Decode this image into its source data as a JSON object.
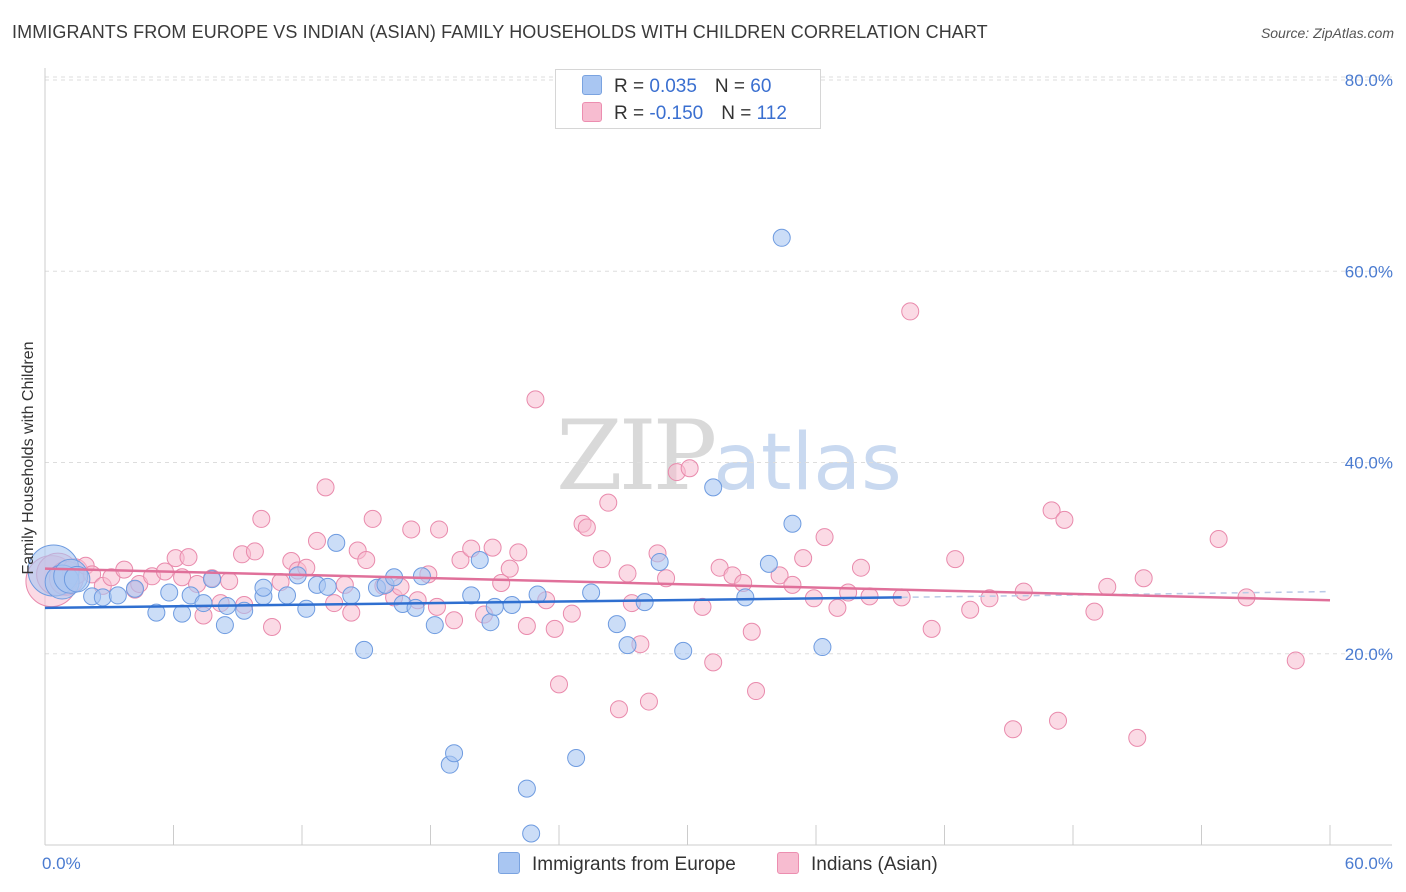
{
  "title": "IMMIGRANTS FROM EUROPE VS INDIAN (ASIAN) FAMILY HOUSEHOLDS WITH CHILDREN CORRELATION CHART",
  "source": "Source: ZipAtlas.com",
  "watermark": {
    "zip": "ZIP",
    "atlas": "atlas"
  },
  "legend": {
    "rows": [
      {
        "r_label": "R = ",
        "r_value": "0.035",
        "n_label": "N = ",
        "n_value": "60",
        "color": "#a9c6f2",
        "border": "#7aa3e0"
      },
      {
        "r_label": "R = ",
        "r_value": "-0.150",
        "n_label": "N = ",
        "n_value": "112",
        "color": "#f7bcd0",
        "border": "#ec8eb0"
      }
    ]
  },
  "colors": {
    "blue_fill": "#a9c6f2",
    "blue_stroke": "#6e9be0",
    "blue_line": "#2f6fd0",
    "pink_fill": "#f7bcd0",
    "pink_stroke": "#e98aac",
    "pink_line": "#e0709a",
    "grid": "#dddddd",
    "axis_text": "#4a7bd0"
  },
  "chart_data": {
    "type": "scatter",
    "title": "IMMIGRANTS FROM EUROPE VS INDIAN (ASIAN) FAMILY HOUSEHOLDS WITH CHILDREN CORRELATION CHART",
    "xlabel": "",
    "ylabel": "Family Households with Children",
    "xlim": [
      0,
      60
    ],
    "ylim": [
      0,
      80
    ],
    "x_tick_labels": [
      "0.0%",
      "60.0%"
    ],
    "y_ticks": [
      20,
      40,
      60,
      80
    ],
    "y_tick_labels": [
      "20.0%",
      "40.0%",
      "60.0%",
      "80.0%"
    ],
    "grid": true,
    "legend_location": "bottom",
    "series": [
      {
        "name": "Immigrants from Europe",
        "R": 0.035,
        "N": 60,
        "trend": {
          "x": [
            0,
            40
          ],
          "y": [
            24.8,
            25.9
          ],
          "extended_to": 60,
          "extended_y": 26.5
        },
        "points": [
          [
            0.4,
            28.7,
            3
          ],
          [
            0.8,
            27.5,
            2
          ],
          [
            1.2,
            28.1,
            2
          ],
          [
            1.5,
            27.8,
            1.5
          ],
          [
            2.2,
            26.0,
            1
          ],
          [
            2.7,
            25.9,
            1
          ],
          [
            3.4,
            26.1,
            1
          ],
          [
            4.2,
            26.8,
            1
          ],
          [
            5.2,
            24.3,
            1
          ],
          [
            5.8,
            26.4,
            1
          ],
          [
            6.4,
            24.2,
            1
          ],
          [
            6.8,
            26.1,
            1
          ],
          [
            7.4,
            25.3,
            1
          ],
          [
            7.8,
            27.8,
            1
          ],
          [
            8.4,
            23.0,
            1
          ],
          [
            8.5,
            25.0,
            1
          ],
          [
            9.3,
            24.5,
            1
          ],
          [
            10.2,
            26.0,
            1
          ],
          [
            10.2,
            26.9,
            1
          ],
          [
            11.3,
            26.1,
            1
          ],
          [
            11.8,
            28.2,
            1
          ],
          [
            12.2,
            24.7,
            1
          ],
          [
            12.7,
            27.2,
            1
          ],
          [
            13.2,
            27.0,
            1
          ],
          [
            13.6,
            31.6,
            1
          ],
          [
            14.3,
            26.1,
            1
          ],
          [
            14.9,
            20.4,
            1
          ],
          [
            15.5,
            26.9,
            1
          ],
          [
            15.9,
            27.2,
            1
          ],
          [
            16.3,
            28.0,
            1
          ],
          [
            16.7,
            25.2,
            1
          ],
          [
            17.3,
            24.8,
            1
          ],
          [
            17.6,
            28.1,
            1
          ],
          [
            18.2,
            23.0,
            1
          ],
          [
            18.9,
            8.4,
            1
          ],
          [
            19.1,
            9.6,
            1
          ],
          [
            19.9,
            26.1,
            1
          ],
          [
            20.3,
            29.8,
            1
          ],
          [
            20.8,
            23.3,
            1
          ],
          [
            21.0,
            24.9,
            1
          ],
          [
            21.8,
            25.1,
            1
          ],
          [
            22.5,
            5.9,
            1
          ],
          [
            22.7,
            1.2,
            1
          ],
          [
            23.0,
            26.2,
            1
          ],
          [
            24.8,
            9.1,
            1
          ],
          [
            25.5,
            26.4,
            1
          ],
          [
            26.7,
            23.1,
            1
          ],
          [
            27.2,
            20.9,
            1
          ],
          [
            28.0,
            25.4,
            1
          ],
          [
            28.7,
            29.6,
            1
          ],
          [
            29.8,
            20.3,
            1
          ],
          [
            31.2,
            37.4,
            1
          ],
          [
            32.7,
            25.9,
            1
          ],
          [
            33.8,
            29.4,
            1
          ],
          [
            34.4,
            63.5,
            1
          ],
          [
            34.9,
            33.6,
            1
          ],
          [
            36.3,
            20.7,
            1
          ]
        ]
      },
      {
        "name": "Indians (Asian)",
        "R": -0.15,
        "N": 112,
        "trend": {
          "x": [
            0,
            60
          ],
          "y": [
            28.9,
            25.6
          ]
        },
        "points": [
          [
            0.3,
            27.6,
            3
          ],
          [
            0.6,
            28.3,
            2.5
          ],
          [
            1.0,
            27.9,
            2
          ],
          [
            1.4,
            28.6,
            1.5
          ],
          [
            1.9,
            29.2,
            1
          ],
          [
            2.2,
            28.3,
            1
          ],
          [
            2.7,
            27.1,
            1
          ],
          [
            3.1,
            28.0,
            1
          ],
          [
            3.7,
            28.8,
            1
          ],
          [
            4.2,
            26.7,
            1
          ],
          [
            4.4,
            27.3,
            1
          ],
          [
            5.0,
            28.1,
            1
          ],
          [
            5.6,
            28.6,
            1
          ],
          [
            6.1,
            30.0,
            1
          ],
          [
            6.4,
            28.0,
            1
          ],
          [
            6.7,
            30.1,
            1
          ],
          [
            7.1,
            27.3,
            1
          ],
          [
            7.4,
            24.0,
            1
          ],
          [
            7.8,
            27.9,
            1
          ],
          [
            8.2,
            25.3,
            1
          ],
          [
            8.6,
            27.6,
            1
          ],
          [
            9.2,
            30.4,
            1
          ],
          [
            9.3,
            25.1,
            1
          ],
          [
            9.8,
            30.7,
            1
          ],
          [
            10.1,
            34.1,
            1
          ],
          [
            10.6,
            22.8,
            1
          ],
          [
            11.0,
            27.5,
            1
          ],
          [
            11.5,
            29.7,
            1
          ],
          [
            11.8,
            28.7,
            1
          ],
          [
            12.2,
            29.0,
            1
          ],
          [
            12.7,
            31.8,
            1
          ],
          [
            13.1,
            37.4,
            1
          ],
          [
            13.5,
            25.3,
            1
          ],
          [
            14.0,
            27.2,
            1
          ],
          [
            14.3,
            24.3,
            1
          ],
          [
            14.6,
            30.8,
            1
          ],
          [
            15.0,
            29.8,
            1
          ],
          [
            15.3,
            34.1,
            1
          ],
          [
            15.8,
            27.1,
            1
          ],
          [
            16.3,
            25.9,
            1
          ],
          [
            16.6,
            27.0,
            1
          ],
          [
            17.1,
            33.0,
            1
          ],
          [
            17.4,
            25.6,
            1
          ],
          [
            17.9,
            28.3,
            1
          ],
          [
            18.3,
            24.9,
            1
          ],
          [
            18.4,
            33.0,
            1
          ],
          [
            19.1,
            23.5,
            1
          ],
          [
            19.4,
            29.8,
            1
          ],
          [
            19.9,
            31.0,
            1
          ],
          [
            20.5,
            24.1,
            1
          ],
          [
            20.9,
            31.1,
            1
          ],
          [
            21.3,
            27.4,
            1
          ],
          [
            21.7,
            28.9,
            1
          ],
          [
            22.1,
            30.6,
            1
          ],
          [
            22.5,
            22.9,
            1
          ],
          [
            22.9,
            46.6,
            1
          ],
          [
            23.4,
            25.6,
            1
          ],
          [
            23.8,
            22.6,
            1
          ],
          [
            24.0,
            16.8,
            1
          ],
          [
            24.6,
            24.2,
            1
          ],
          [
            25.1,
            33.6,
            1
          ],
          [
            25.3,
            33.2,
            1
          ],
          [
            26.0,
            29.9,
            1
          ],
          [
            26.3,
            35.8,
            1
          ],
          [
            26.8,
            14.2,
            1
          ],
          [
            27.2,
            28.4,
            1
          ],
          [
            27.4,
            25.3,
            1
          ],
          [
            27.8,
            21.0,
            1
          ],
          [
            28.2,
            15.0,
            1
          ],
          [
            28.6,
            30.5,
            1
          ],
          [
            29.0,
            27.9,
            1
          ],
          [
            29.5,
            39.0,
            1
          ],
          [
            30.1,
            39.4,
            1
          ],
          [
            30.7,
            24.9,
            1
          ],
          [
            31.2,
            19.1,
            1
          ],
          [
            31.5,
            29.0,
            1
          ],
          [
            32.1,
            28.2,
            1
          ],
          [
            32.6,
            27.4,
            1
          ],
          [
            33.0,
            22.3,
            1
          ],
          [
            33.2,
            16.1,
            1
          ],
          [
            34.3,
            28.2,
            1
          ],
          [
            34.9,
            27.2,
            1
          ],
          [
            35.4,
            30.0,
            1
          ],
          [
            35.9,
            25.8,
            1
          ],
          [
            36.4,
            32.2,
            1
          ],
          [
            37.0,
            24.8,
            1
          ],
          [
            37.5,
            26.4,
            1
          ],
          [
            38.1,
            29.0,
            1
          ],
          [
            38.5,
            26.0,
            1
          ],
          [
            40.0,
            25.9,
            1
          ],
          [
            40.4,
            55.8,
            1
          ],
          [
            41.4,
            22.6,
            1
          ],
          [
            42.5,
            29.9,
            1
          ],
          [
            43.2,
            24.6,
            1
          ],
          [
            44.1,
            25.8,
            1
          ],
          [
            45.2,
            12.1,
            1
          ],
          [
            45.7,
            26.5,
            1
          ],
          [
            47.0,
            35.0,
            1
          ],
          [
            47.3,
            13.0,
            1
          ],
          [
            47.6,
            34.0,
            1
          ],
          [
            49.0,
            24.4,
            1
          ],
          [
            49.6,
            27.0,
            1
          ],
          [
            51.0,
            11.2,
            1
          ],
          [
            51.3,
            27.9,
            1
          ],
          [
            54.8,
            32.0,
            1
          ],
          [
            56.1,
            25.9,
            1
          ],
          [
            58.4,
            19.3,
            1
          ]
        ]
      }
    ]
  }
}
